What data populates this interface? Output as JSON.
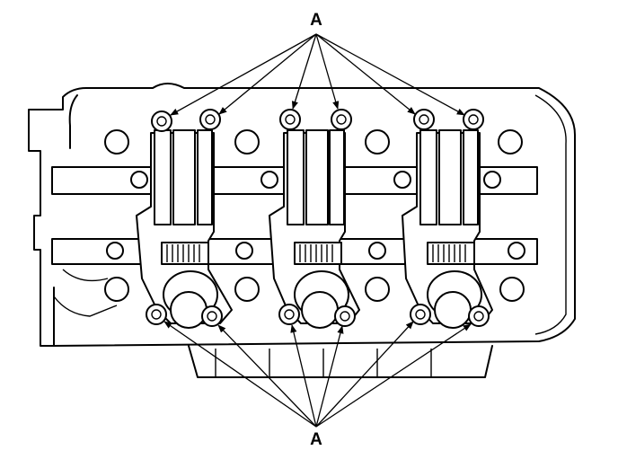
{
  "labels": {
    "top": "A",
    "bottom": "A"
  }
}
